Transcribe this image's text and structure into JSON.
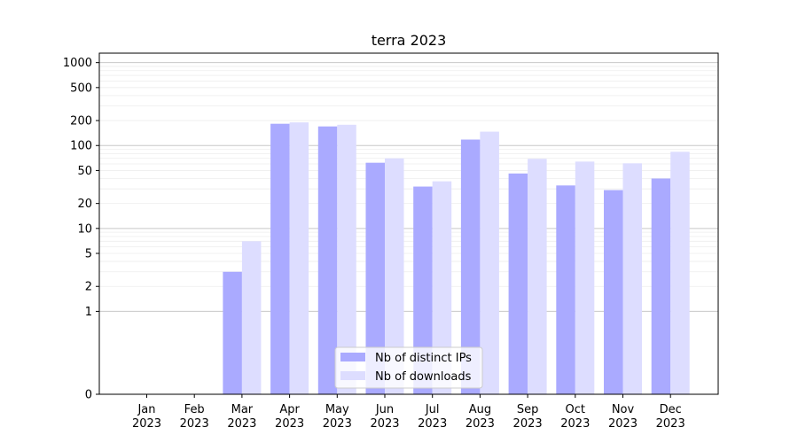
{
  "chart_data": {
    "type": "bar",
    "title": "terra 2023",
    "xlabel": "",
    "ylabel": "",
    "yscale": "symlog",
    "ylim": [
      0,
      1300
    ],
    "categories": [
      [
        "Jan",
        "2023"
      ],
      [
        "Feb",
        "2023"
      ],
      [
        "Mar",
        "2023"
      ],
      [
        "Apr",
        "2023"
      ],
      [
        "May",
        "2023"
      ],
      [
        "Jun",
        "2023"
      ],
      [
        "Jul",
        "2023"
      ],
      [
        "Aug",
        "2023"
      ],
      [
        "Sep",
        "2023"
      ],
      [
        "Oct",
        "2023"
      ],
      [
        "Nov",
        "2023"
      ],
      [
        "Dec",
        "2023"
      ]
    ],
    "yticks": [
      "0",
      "1",
      "2",
      "5",
      "10",
      "20",
      "50",
      "100",
      "200",
      "500",
      "1000"
    ],
    "yticks_values": [
      0,
      1,
      2,
      5,
      10,
      20,
      50,
      100,
      200,
      500,
      1000
    ],
    "series": [
      {
        "name": "Nb of distinct IPs",
        "color": "#aaaaff",
        "values": [
          0,
          0,
          3,
          183,
          170,
          62,
          32,
          118,
          46,
          33,
          29,
          40
        ]
      },
      {
        "name": "Nb of downloads",
        "color": "#ddddff",
        "values": [
          0,
          0,
          7,
          190,
          178,
          70,
          37,
          147,
          69,
          64,
          61,
          84
        ]
      }
    ],
    "grid": "horizontal",
    "legend": "lower-center"
  }
}
